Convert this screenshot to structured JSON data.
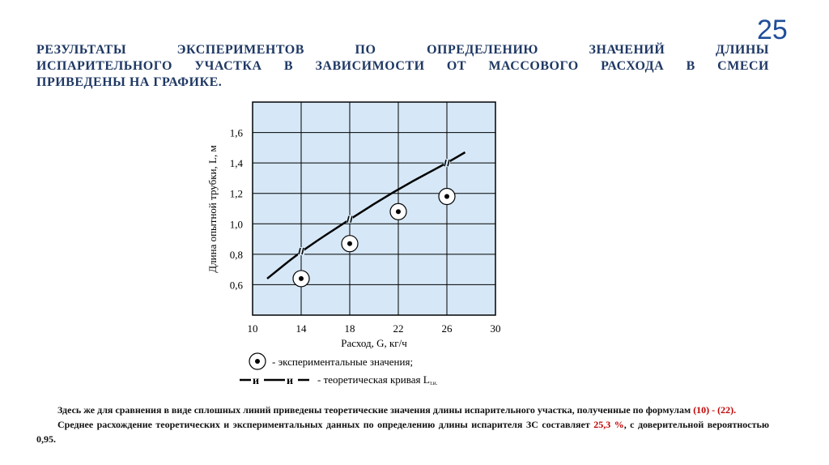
{
  "slide": {
    "number": "25"
  },
  "heading": "РЕЗУЛЬТАТЫ ЭКСПЕРИМЕНТОВ ПО ОПРЕДЕЛЕНИЮ ЗНАЧЕНИЙ ДЛИНЫ ИСПАРИТЕЛЬНОГО УЧАСТКА В ЗАВИСИМОСТИ ОТ МАССОВОГО РАСХОДА В СМЕСИ ПРИВЕДЕНЫ НА ГРАФИКЕ.",
  "heading_lines": [
    "РЕЗУЛЬТАТЫ ЭКСПЕРИМЕНТОВ ПО ОПРЕДЕЛЕНИЮ ЗНАЧЕНИЙ ДЛИНЫ",
    "ИСПАРИТЕЛЬНОГО УЧАСТКА В ЗАВИСИМОСТИ ОТ МАССОВОГО РАСХОДА В СМЕСИ",
    "ПРИВЕДЕНЫ НА ГРАФИКЕ."
  ],
  "chart_data": {
    "type": "scatter",
    "xlabel": "Расход, G, кг/ч",
    "ylabel": "Длина опытной трубки, L, м",
    "xlim": [
      10,
      30
    ],
    "ylim": [
      0.4,
      1.8
    ],
    "x_ticks": [
      "10",
      "14",
      "18",
      "22",
      "26",
      "30"
    ],
    "y_ticks": [
      "0,6",
      "0,8",
      "1,0",
      "1,2",
      "1,4",
      "1,6"
    ],
    "x_tick_values": [
      10,
      14,
      18,
      22,
      26,
      30
    ],
    "y_tick_values": [
      0.6,
      0.8,
      1.0,
      1.2,
      1.4,
      1.6
    ],
    "grid": true,
    "background": "#d6e8f7",
    "series": [
      {
        "name": "экспериментальные значения;",
        "kind": "points",
        "x": [
          14,
          18,
          22,
          26
        ],
        "y": [
          0.64,
          0.87,
          1.08,
          1.18
        ]
      },
      {
        "name": "теоретическая кривая L",
        "name_subscript": "т.и.",
        "kind": "line",
        "x": [
          11.2,
          14,
          18,
          22,
          26,
          27.5
        ],
        "y": [
          0.64,
          0.82,
          1.03,
          1.23,
          1.4,
          1.47
        ],
        "marker_x": [
          14,
          18,
          26
        ]
      }
    ],
    "legend_labels": [
      "- экспериментальные значения;",
      "- теоретическая кривая L"
    ],
    "legend_placement": "below"
  },
  "notes": {
    "p1_before": "Здесь же для сравнения в виде сплошных линий приведены теоретические значения длины  испарительного участка, полученные по формулам ",
    "p1_red": "(10) - (22).",
    "p2_before": "Среднее расхождение теоретических и экспериментальных данных по определению длины испарителя ЗС составляет ",
    "p2_red": "25,3 %",
    "p2_after": ", с доверительной вероятностью 0,95."
  },
  "colors": {
    "accent": "#1f4e99",
    "heading": "#1f3864",
    "highlight": "#c00000"
  }
}
